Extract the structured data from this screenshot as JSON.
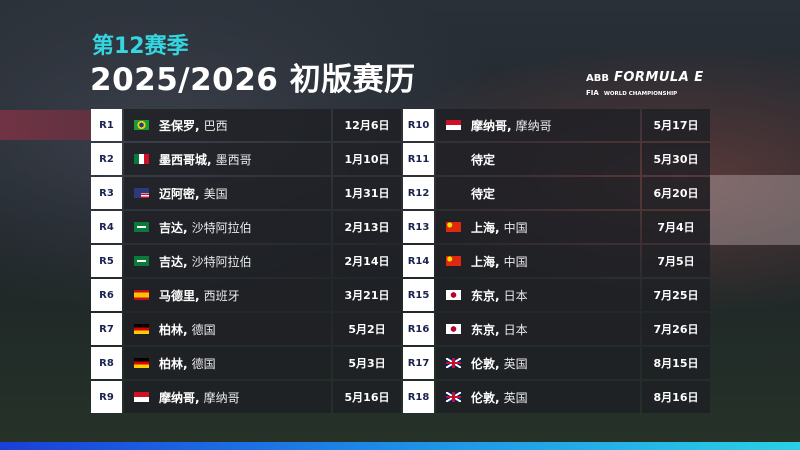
{
  "header": {
    "season": "第12赛季",
    "title": "2025/2026 初版赛历"
  },
  "logo": {
    "abb": "ABB",
    "formula_e": "FORMULA E",
    "fia": "FIA",
    "world": "WORLD CHAMPIONSHIP"
  },
  "colors": {
    "accent": "#35d6e0",
    "round_text": "#1a2350"
  },
  "rounds": [
    {
      "round": "R1",
      "city": "圣保罗,",
      "country": "巴西",
      "flag": "brazil",
      "date": "12月6日"
    },
    {
      "round": "R2",
      "city": "墨西哥城,",
      "country": "墨西哥",
      "flag": "mexico",
      "date": "1月10日"
    },
    {
      "round": "R3",
      "city": "迈阿密,",
      "country": "美国",
      "flag": "usa",
      "date": "1月31日"
    },
    {
      "round": "R4",
      "city": "吉达,",
      "country": "沙特阿拉伯",
      "flag": "saudi",
      "date": "2月13日"
    },
    {
      "round": "R5",
      "city": "吉达,",
      "country": "沙特阿拉伯",
      "flag": "saudi",
      "date": "2月14日"
    },
    {
      "round": "R6",
      "city": "马德里,",
      "country": "西班牙",
      "flag": "spain",
      "date": "3月21日"
    },
    {
      "round": "R7",
      "city": "柏林,",
      "country": "德国",
      "flag": "germany",
      "date": "5月2日"
    },
    {
      "round": "R8",
      "city": "柏林,",
      "country": "德国",
      "flag": "germany",
      "date": "5月3日"
    },
    {
      "round": "R9",
      "city": "摩纳哥,",
      "country": "摩纳哥",
      "flag": "monaco",
      "date": "5月16日"
    },
    {
      "round": "R10",
      "city": "摩纳哥,",
      "country": "摩纳哥",
      "flag": "monaco",
      "date": "5月17日"
    },
    {
      "round": "R11",
      "city": "待定",
      "country": "",
      "flag": "",
      "date": "5月30日"
    },
    {
      "round": "R12",
      "city": "待定",
      "country": "",
      "flag": "",
      "date": "6月20日"
    },
    {
      "round": "R13",
      "city": "上海,",
      "country": "中国",
      "flag": "china",
      "date": "7月4日"
    },
    {
      "round": "R14",
      "city": "上海,",
      "country": "中国",
      "flag": "china",
      "date": "7月5日"
    },
    {
      "round": "R15",
      "city": "东京,",
      "country": "日本",
      "flag": "japan",
      "date": "7月25日"
    },
    {
      "round": "R16",
      "city": "东京,",
      "country": "日本",
      "flag": "japan",
      "date": "7月26日"
    },
    {
      "round": "R17",
      "city": "伦敦,",
      "country": "英国",
      "flag": "uk",
      "date": "8月15日"
    },
    {
      "round": "R18",
      "city": "伦敦,",
      "country": "英国",
      "flag": "uk",
      "date": "8月16日"
    }
  ]
}
